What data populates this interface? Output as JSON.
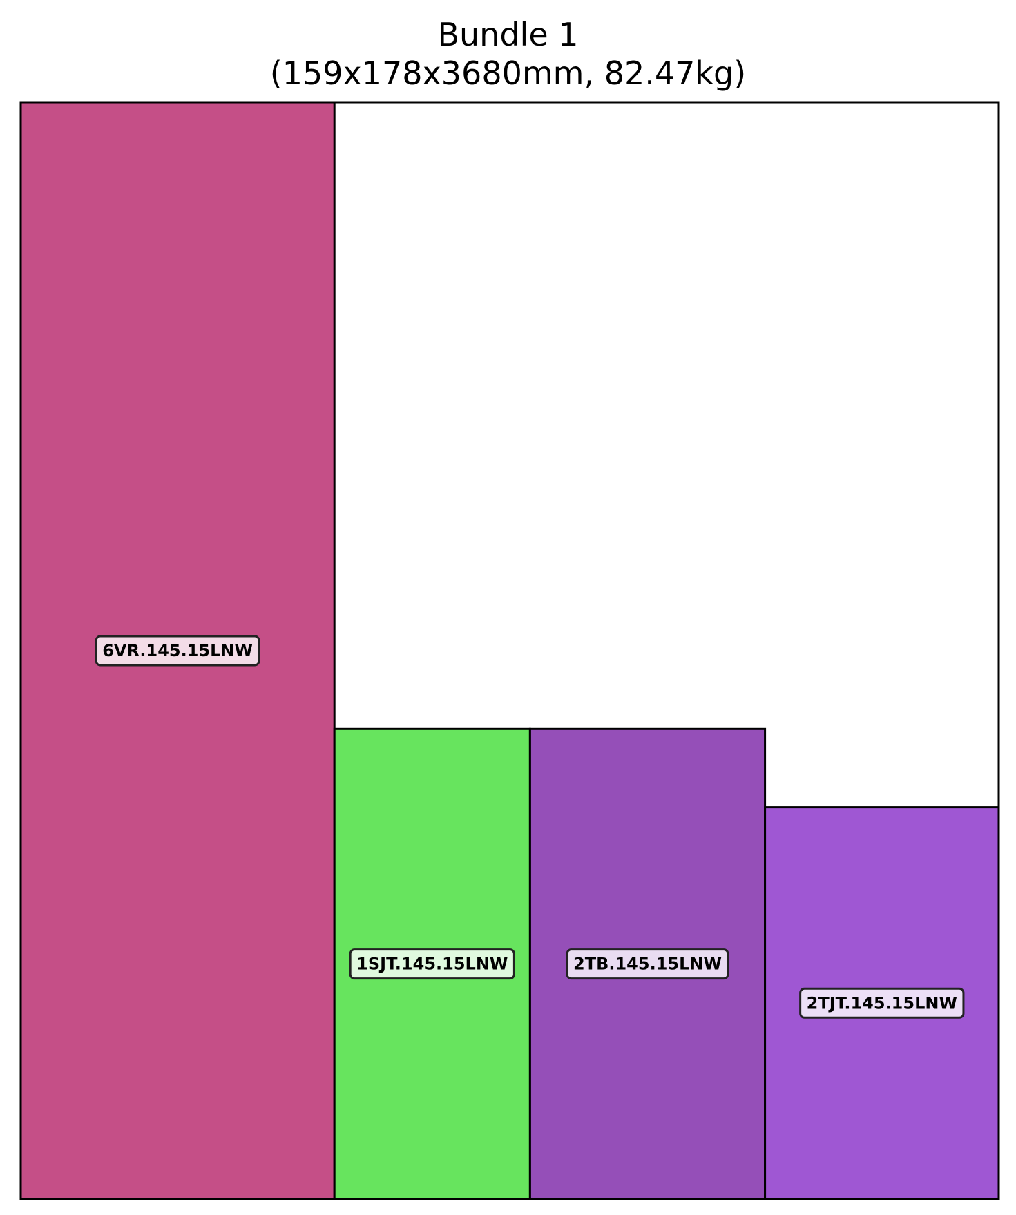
{
  "title": {
    "line1": "Bundle 1",
    "line2": "(159x178x3680mm, 82.47kg)"
  },
  "bundle": {
    "width_mm": 159,
    "height_mm": 178
  },
  "pieces": [
    {
      "label": "6VR.145.15LNW",
      "color": "#c54f87",
      "label_bg": "#f3dce7",
      "x_mm": 0,
      "w_mm": 51,
      "h_mm": 178
    },
    {
      "label": "1SJT.145.15LNW",
      "color": "#67e45e",
      "label_bg": "#e0f9df",
      "x_mm": 51,
      "w_mm": 31.8,
      "h_mm": 76.3
    },
    {
      "label": "2TB.145.15LNW",
      "color": "#954fb8",
      "label_bg": "#e9dcf1",
      "x_mm": 82.8,
      "w_mm": 38.2,
      "h_mm": 76.3
    },
    {
      "label": "2TJT.145.15LNW",
      "color": "#9f57d3",
      "label_bg": "#ecdff6",
      "x_mm": 121,
      "w_mm": 38,
      "h_mm": 63.6
    }
  ]
}
